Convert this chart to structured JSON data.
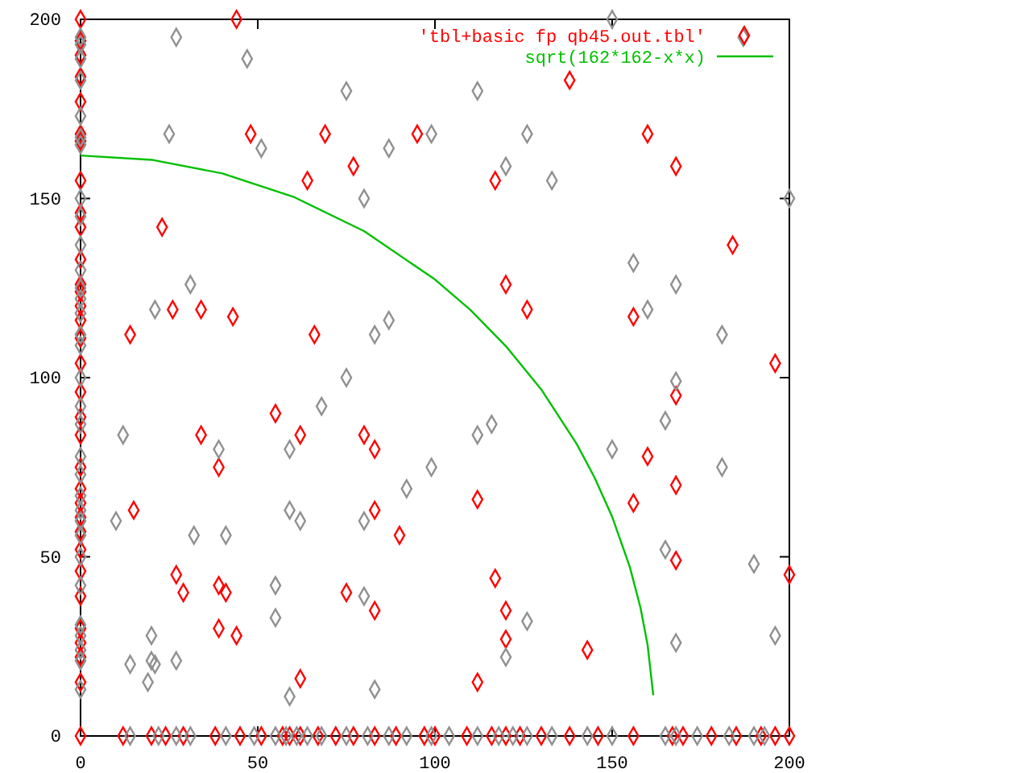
{
  "chart_data": {
    "type": "scatter",
    "xlim": [
      0,
      200
    ],
    "ylim": [
      0,
      200
    ],
    "xticks": [
      0,
      50,
      100,
      150,
      200
    ],
    "yticks": [
      0,
      50,
      100,
      150,
      200
    ],
    "legend": "top right",
    "series": [
      {
        "name": "'tbl+basic fp qb45.out.tbl'",
        "marker": "diamond",
        "color": "#ff0000",
        "x": [
          44,
          48,
          69,
          95,
          77,
          64,
          23,
          26,
          34,
          43,
          14,
          66,
          138,
          160,
          168,
          117,
          184,
          120,
          126,
          156,
          196,
          55,
          34,
          62,
          80,
          83,
          39,
          15,
          83,
          90,
          27,
          29,
          39,
          41,
          75,
          83,
          39,
          44,
          62,
          168,
          160,
          112,
          168,
          156,
          168,
          200,
          117,
          120,
          120,
          143,
          112,
          0,
          0,
          0,
          0,
          0,
          0,
          0,
          0,
          0,
          0,
          0,
          0,
          0,
          0,
          0,
          0,
          0,
          0,
          0,
          0,
          0,
          0,
          0,
          0,
          0,
          0,
          0,
          0,
          0,
          0,
          0,
          0,
          0,
          12,
          20,
          24,
          29,
          38,
          45,
          51,
          57,
          59,
          62,
          67,
          72,
          77,
          83,
          89,
          97,
          100,
          109,
          116,
          120,
          124,
          130,
          138,
          146,
          156,
          167,
          170,
          178,
          185,
          192,
          196,
          200
        ],
        "values": [
          200,
          168,
          168,
          168,
          159,
          155,
          142,
          119,
          119,
          117,
          112,
          112,
          183,
          168,
          159,
          155,
          137,
          126,
          119,
          117,
          104,
          90,
          84,
          84,
          84,
          80,
          75,
          63,
          63,
          56,
          45,
          40,
          42,
          40,
          40,
          35,
          30,
          28,
          16,
          95,
          78,
          66,
          70,
          65,
          49,
          45,
          44,
          35,
          27,
          24,
          15,
          200,
          194,
          190,
          184,
          177,
          168,
          166,
          155,
          146,
          142,
          133,
          126,
          124,
          120,
          116,
          111,
          104,
          96,
          89,
          84,
          75,
          69,
          65,
          61,
          57,
          52,
          46,
          39,
          30,
          26,
          22,
          15,
          0,
          0,
          0,
          0,
          0,
          0,
          0,
          0,
          0,
          0,
          0,
          0,
          0,
          0,
          0,
          0,
          0,
          0,
          0,
          0,
          0,
          0,
          0,
          0,
          0,
          0,
          0,
          0,
          0,
          0,
          0,
          0,
          0
        ]
      },
      {
        "marker": "diamond",
        "color": "#909090",
        "x": [
          27,
          47,
          75,
          25,
          99,
          51,
          87,
          80,
          31,
          21,
          87,
          83,
          75,
          187,
          112,
          126,
          120,
          133,
          200,
          156,
          168,
          160,
          181,
          150,
          68,
          12,
          39,
          59,
          99,
          92,
          59,
          10,
          62,
          80,
          32,
          41,
          55,
          80,
          55,
          20,
          27,
          20,
          21,
          14,
          19,
          59,
          83,
          168,
          165,
          112,
          116,
          150,
          181,
          165,
          190,
          126,
          168,
          196,
          120,
          0,
          0,
          0,
          0,
          0,
          0,
          0,
          0,
          0,
          0,
          0,
          0,
          0,
          0,
          0,
          0,
          0,
          0,
          0,
          0,
          0,
          0,
          0,
          0,
          0,
          0,
          0,
          0,
          0,
          0,
          0,
          0,
          14,
          22,
          27,
          31,
          41,
          49,
          55,
          58,
          61,
          64,
          68,
          75,
          81,
          87,
          92,
          99,
          104,
          112,
          118,
          122,
          126,
          133,
          143,
          150,
          165,
          168,
          174,
          183,
          190,
          193
        ],
        "values": [
          195,
          189,
          180,
          168,
          168,
          164,
          164,
          150,
          126,
          119,
          116,
          112,
          100,
          195,
          180,
          168,
          159,
          155,
          150,
          132,
          126,
          119,
          112,
          200,
          92,
          84,
          80,
          80,
          75,
          69,
          63,
          60,
          60,
          60,
          56,
          56,
          42,
          39,
          33,
          28,
          21,
          21,
          20,
          20,
          15,
          11,
          13,
          99,
          88,
          84,
          87,
          80,
          75,
          52,
          48,
          32,
          26,
          28,
          22,
          195,
          193,
          189,
          183,
          173,
          167,
          165,
          150,
          145,
          137,
          130,
          125,
          122,
          118,
          112,
          109,
          100,
          92,
          87,
          78,
          73,
          67,
          63,
          60,
          56,
          50,
          42,
          31,
          28,
          24,
          21,
          13,
          0,
          0,
          0,
          0,
          0,
          0,
          0,
          0,
          0,
          0,
          0,
          0,
          0,
          0,
          0,
          0,
          0,
          0,
          0,
          0,
          0,
          0,
          0,
          0,
          0,
          0,
          0,
          0,
          0,
          0
        ]
      },
      {
        "type": "line",
        "marker": "none",
        "name": "sqrt(162*162-x*x)",
        "color": "#00c000",
        "x": [
          0,
          20,
          40,
          60,
          80,
          100,
          110,
          120,
          130,
          140,
          145,
          150,
          155,
          158,
          160,
          161.6
        ],
        "values": [
          162,
          160.8,
          157,
          150.5,
          140.9,
          127.4,
          118.9,
          108.8,
          96.7,
          81.5,
          72.2,
          61.2,
          47.1,
          35.8,
          25.4,
          11.4
        ]
      }
    ]
  }
}
